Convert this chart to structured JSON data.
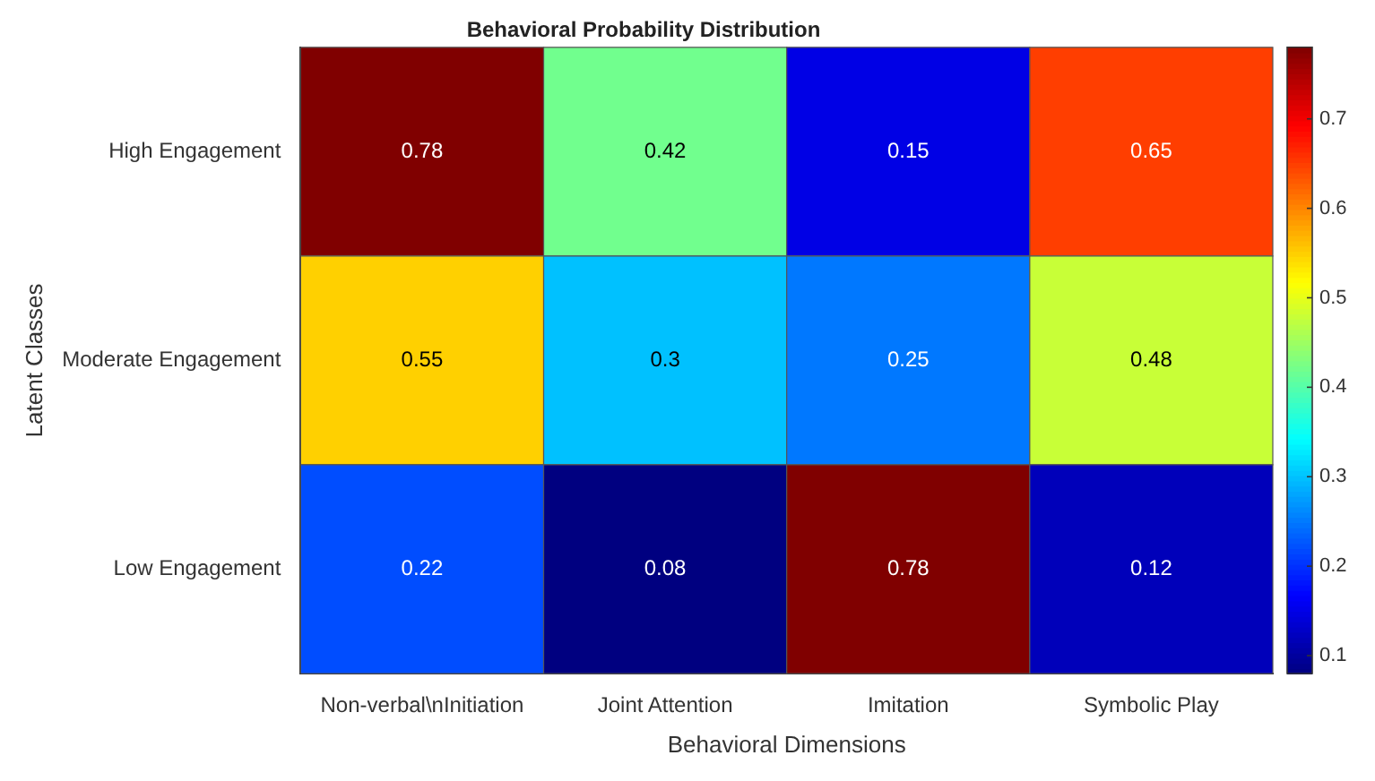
{
  "chart_data": {
    "type": "heatmap",
    "title": "Behavioral Probability Distribution",
    "xlabel": "Behavioral Dimensions",
    "ylabel": "Latent Classes",
    "categories": [
      "Non-verbal\\nInitiation",
      "Joint Attention",
      "Imitation",
      "Symbolic Play"
    ],
    "y_categories": [
      "High Engagement",
      "Moderate Engagement",
      "Low Engagement"
    ],
    "cells": [
      [
        0.78,
        0.42,
        0.15,
        0.65
      ],
      [
        0.55,
        0.3,
        0.25,
        0.48
      ],
      [
        0.22,
        0.08,
        0.78,
        0.12
      ]
    ],
    "clim": [
      0.08,
      0.78
    ],
    "cticks": [
      0.1,
      0.2,
      0.3,
      0.4,
      0.5,
      0.6,
      0.7
    ],
    "data_labels": true
  }
}
